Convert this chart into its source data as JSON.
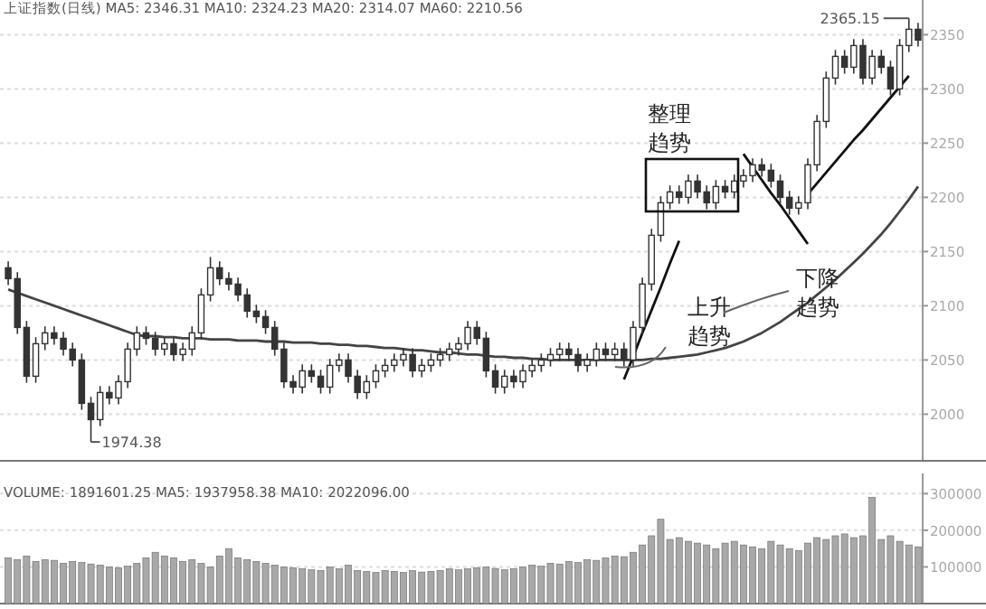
{
  "chart_data": [
    {
      "type": "candlestick",
      "title": "上证指数(日线) MA5: 2346.31 MA10: 2324.23 MA20: 2314.07 MA60: 2210.56",
      "categories": [
        null,
        null,
        null,
        null,
        null,
        null,
        null,
        null,
        null,
        null,
        null,
        null,
        null,
        null,
        null,
        null,
        null,
        null,
        null,
        null,
        null,
        null,
        null,
        null,
        null,
        null,
        null,
        null,
        null,
        null,
        null,
        null,
        null,
        null,
        null,
        null,
        null,
        null,
        null,
        null,
        null,
        null,
        null,
        null,
        null,
        null,
        null,
        null,
        null,
        null,
        null,
        null,
        null,
        null,
        null,
        null,
        null,
        null,
        null,
        null,
        null,
        null,
        null,
        null,
        null,
        null,
        null,
        null,
        null,
        null,
        null,
        null,
        null,
        null,
        null,
        null,
        null,
        null,
        null,
        null,
        null,
        null,
        null,
        null,
        null,
        null,
        null,
        null,
        null,
        null,
        null,
        null,
        null,
        null,
        null,
        null,
        null,
        null,
        null,
        null
      ],
      "ohlc": [
        [
          2135,
          2141,
          2119,
          2125
        ],
        [
          2125,
          2131,
          2074,
          2080
        ],
        [
          2080,
          2086,
          2029,
          2035
        ],
        [
          2035,
          2071,
          2029,
          2065
        ],
        [
          2065,
          2081,
          2059,
          2075
        ],
        [
          2075,
          2081,
          2064,
          2070
        ],
        [
          2070,
          2076,
          2054,
          2060
        ],
        [
          2060,
          2066,
          2044,
          2050
        ],
        [
          2050,
          2056,
          2004,
          2010
        ],
        [
          2010,
          2016,
          1974.38,
          1995
        ],
        [
          1995,
          2026,
          1989,
          2020
        ],
        [
          2020,
          2026,
          2009,
          2015
        ],
        [
          2015,
          2036,
          2009,
          2030
        ],
        [
          2030,
          2066,
          2024,
          2060
        ],
        [
          2060,
          2081,
          2054,
          2075
        ],
        [
          2075,
          2081,
          2064,
          2070
        ],
        [
          2070,
          2076,
          2054,
          2060
        ],
        [
          2060,
          2071,
          2054,
          2065
        ],
        [
          2065,
          2071,
          2049,
          2055
        ],
        [
          2055,
          2066,
          2049,
          2060
        ],
        [
          2060,
          2081,
          2054,
          2075
        ],
        [
          2075,
          2116,
          2069,
          2110
        ],
        [
          2110,
          2145,
          2104,
          2135
        ],
        [
          2135,
          2141,
          2119,
          2125
        ],
        [
          2125,
          2131,
          2114,
          2120
        ],
        [
          2120,
          2126,
          2104,
          2110
        ],
        [
          2110,
          2116,
          2089,
          2095
        ],
        [
          2095,
          2101,
          2084,
          2090
        ],
        [
          2090,
          2096,
          2074,
          2080
        ],
        [
          2080,
          2086,
          2054,
          2060
        ],
        [
          2060,
          2066,
          2024,
          2030
        ],
        [
          2030,
          2036,
          2019,
          2025
        ],
        [
          2025,
          2046,
          2019,
          2040
        ],
        [
          2040,
          2046,
          2029,
          2035
        ],
        [
          2035,
          2041,
          2019,
          2025
        ],
        [
          2025,
          2051,
          2019,
          2045
        ],
        [
          2045,
          2056,
          2039,
          2050
        ],
        [
          2050,
          2056,
          2029,
          2035
        ],
        [
          2035,
          2041,
          2014,
          2020
        ],
        [
          2020,
          2036,
          2014,
          2030
        ],
        [
          2030,
          2046,
          2024,
          2040
        ],
        [
          2040,
          2051,
          2034,
          2045
        ],
        [
          2045,
          2056,
          2039,
          2050
        ],
        [
          2050,
          2061,
          2044,
          2055
        ],
        [
          2055,
          2061,
          2034,
          2040
        ],
        [
          2040,
          2051,
          2034,
          2045
        ],
        [
          2045,
          2056,
          2039,
          2050
        ],
        [
          2050,
          2061,
          2044,
          2055
        ],
        [
          2055,
          2066,
          2049,
          2060
        ],
        [
          2060,
          2071,
          2054,
          2065
        ],
        [
          2065,
          2086,
          2059,
          2080
        ],
        [
          2080,
          2086,
          2064,
          2070
        ],
        [
          2070,
          2076,
          2034,
          2040
        ],
        [
          2040,
          2046,
          2019,
          2025
        ],
        [
          2025,
          2041,
          2019,
          2035
        ],
        [
          2035,
          2041,
          2024,
          2030
        ],
        [
          2030,
          2046,
          2024,
          2040
        ],
        [
          2040,
          2051,
          2034,
          2045
        ],
        [
          2045,
          2056,
          2039,
          2050
        ],
        [
          2050,
          2061,
          2044,
          2055
        ],
        [
          2055,
          2066,
          2049,
          2060
        ],
        [
          2060,
          2066,
          2049,
          2055
        ],
        [
          2055,
          2061,
          2039,
          2045
        ],
        [
          2045,
          2056,
          2039,
          2050
        ],
        [
          2050,
          2066,
          2044,
          2060
        ],
        [
          2060,
          2066,
          2049,
          2055
        ],
        [
          2055,
          2066,
          2049,
          2060
        ],
        [
          2060,
          2066,
          2044,
          2050
        ],
        [
          2050,
          2086,
          2044,
          2080
        ],
        [
          2080,
          2126,
          2074,
          2120
        ],
        [
          2120,
          2171,
          2114,
          2165
        ],
        [
          2165,
          2201,
          2159,
          2195
        ],
        [
          2195,
          2211,
          2189,
          2205
        ],
        [
          2205,
          2211,
          2194,
          2200
        ],
        [
          2200,
          2221,
          2194,
          2215
        ],
        [
          2215,
          2221,
          2199,
          2205
        ],
        [
          2205,
          2211,
          2189,
          2195
        ],
        [
          2195,
          2216,
          2189,
          2210
        ],
        [
          2210,
          2216,
          2199,
          2205
        ],
        [
          2205,
          2221,
          2199,
          2215
        ],
        [
          2215,
          2226,
          2209,
          2220
        ],
        [
          2220,
          2236,
          2214,
          2230
        ],
        [
          2230,
          2236,
          2219,
          2225
        ],
        [
          2225,
          2231,
          2209,
          2215
        ],
        [
          2215,
          2221,
          2194,
          2200
        ],
        [
          2200,
          2206,
          2184,
          2190
        ],
        [
          2190,
          2201,
          2184,
          2195
        ],
        [
          2195,
          2236,
          2189,
          2230
        ],
        [
          2230,
          2276,
          2224,
          2270
        ],
        [
          2270,
          2316,
          2264,
          2310
        ],
        [
          2310,
          2336,
          2304,
          2330
        ],
        [
          2330,
          2336,
          2314,
          2320
        ],
        [
          2320,
          2346,
          2314,
          2340
        ],
        [
          2340,
          2346,
          2304,
          2310
        ],
        [
          2310,
          2336,
          2304,
          2330
        ],
        [
          2330,
          2336,
          2314,
          2320
        ],
        [
          2320,
          2326,
          2294,
          2300
        ],
        [
          2300,
          2346,
          2294,
          2340
        ],
        [
          2340,
          2365.15,
          2334,
          2355
        ],
        [
          2355,
          2361,
          2339,
          2345
        ]
      ],
      "series": [
        {
          "type": "line",
          "color": "#444444",
          "values": [
            2115,
            2112,
            2109,
            2106,
            2103,
            2100,
            2097,
            2094,
            2091,
            2088,
            2085,
            2082,
            2079,
            2076,
            2073,
            2072,
            2072,
            2071,
            2071,
            2070,
            2070,
            2070,
            2069,
            2069,
            2069,
            2068,
            2068,
            2068,
            2067,
            2067,
            2067,
            2066,
            2066,
            2066,
            2065,
            2065,
            2064,
            2064,
            2063,
            2063,
            2062,
            2061,
            2061,
            2060,
            2059,
            2059,
            2058,
            2057,
            2057,
            2056,
            2055,
            2055,
            2054,
            2053,
            2053,
            2052,
            2052,
            2051,
            2051,
            2050,
            2050,
            2050,
            2050,
            2050,
            2050,
            2050,
            2050,
            2050,
            2050,
            2050,
            2051,
            2051,
            2052,
            2053,
            2054,
            2055,
            2057,
            2059,
            2061,
            2064,
            2067,
            2071,
            2075,
            2080,
            2085,
            2091,
            2097,
            2103,
            2110,
            2117,
            2124,
            2132,
            2140,
            2148,
            2157,
            2166,
            2176,
            2187,
            2198,
            2210
          ]
        },
        {
          "type": "line",
          "color": "#111111",
          "values": [
            null,
            null,
            null,
            null,
            null,
            null,
            null,
            null,
            null,
            null,
            null,
            null,
            null,
            null,
            null,
            null,
            null,
            null,
            null,
            null,
            null,
            null,
            null,
            null,
            null,
            null,
            null,
            null,
            null,
            null,
            null,
            null,
            null,
            null,
            null,
            null,
            null,
            null,
            null,
            null,
            null,
            null,
            null,
            null,
            null,
            null,
            null,
            null,
            null,
            null,
            null,
            null,
            null,
            null,
            null,
            null,
            null,
            null,
            null,
            null,
            null,
            null,
            null,
            null,
            null,
            null,
            null,
            2032,
            2053,
            2075,
            2096,
            2117,
            2139,
            2160,
            null,
            null,
            null,
            null,
            null,
            null,
            null,
            null,
            null,
            null,
            null,
            null,
            null,
            null,
            null,
            null,
            null,
            null,
            null,
            null,
            null,
            null,
            null,
            null,
            null,
            null
          ]
        },
        {
          "type": "line",
          "color": "#111111",
          "values": [
            null,
            null,
            null,
            null,
            null,
            null,
            null,
            null,
            null,
            null,
            null,
            null,
            null,
            null,
            null,
            null,
            null,
            null,
            null,
            null,
            null,
            null,
            null,
            null,
            null,
            null,
            null,
            null,
            null,
            null,
            null,
            null,
            null,
            null,
            null,
            null,
            null,
            null,
            null,
            null,
            null,
            null,
            null,
            null,
            null,
            null,
            null,
            null,
            null,
            null,
            null,
            null,
            null,
            null,
            null,
            null,
            null,
            null,
            null,
            null,
            null,
            null,
            null,
            null,
            null,
            null,
            null,
            null,
            null,
            null,
            null,
            null,
            null,
            null,
            null,
            null,
            null,
            null,
            null,
            null,
            2240,
            2228,
            2216,
            2204,
            2193,
            2181,
            2169,
            2157,
            null,
            null,
            null,
            null,
            null,
            null,
            null,
            null,
            null,
            null,
            null,
            null
          ]
        },
        {
          "type": "line",
          "color": "#111111",
          "values": [
            null,
            null,
            null,
            null,
            null,
            null,
            null,
            null,
            null,
            null,
            null,
            null,
            null,
            null,
            null,
            null,
            null,
            null,
            null,
            null,
            null,
            null,
            null,
            null,
            null,
            null,
            null,
            null,
            null,
            null,
            null,
            null,
            null,
            null,
            null,
            null,
            null,
            null,
            null,
            null,
            null,
            null,
            null,
            null,
            null,
            null,
            null,
            null,
            null,
            null,
            null,
            null,
            null,
            null,
            null,
            null,
            null,
            null,
            null,
            null,
            null,
            null,
            null,
            null,
            null,
            null,
            null,
            null,
            null,
            null,
            null,
            null,
            null,
            null,
            null,
            null,
            null,
            null,
            null,
            null,
            null,
            null,
            null,
            null,
            null,
            null,
            null,
            2203,
            2213,
            2223,
            2233,
            2243,
            2253,
            2262,
            2272,
            2282,
            2292,
            2302,
            2312,
            null
          ]
        }
      ],
      "ylim": [
        1957,
        2382
      ],
      "yticks": [
        2000,
        2050,
        2100,
        2150,
        2200,
        2250,
        2300,
        2350
      ],
      "grid": "y",
      "annotations": [
        "整理趋势",
        "上升趋势",
        "下降趋势",
        "1974.38",
        "2365.15"
      ]
    },
    {
      "type": "bar",
      "title": "VOLUME: 1891601.25 MA5: 1937958.38 MA10: 2022096.00",
      "categories": [
        null,
        null,
        null,
        null,
        null,
        null,
        null,
        null,
        null,
        null,
        null,
        null,
        null,
        null,
        null,
        null,
        null,
        null,
        null,
        null,
        null,
        null,
        null,
        null,
        null,
        null,
        null,
        null,
        null,
        null,
        null,
        null,
        null,
        null,
        null,
        null,
        null,
        null,
        null,
        null,
        null,
        null,
        null,
        null,
        null,
        null,
        null,
        null,
        null,
        null,
        null,
        null,
        null,
        null,
        null,
        null,
        null,
        null,
        null,
        null,
        null,
        null,
        null,
        null,
        null,
        null,
        null,
        null,
        null,
        null,
        null,
        null,
        null,
        null,
        null,
        null,
        null,
        null,
        null,
        null,
        null,
        null,
        null,
        null,
        null,
        null,
        null,
        null,
        null,
        null,
        null,
        null,
        null,
        null,
        null,
        null,
        null,
        null,
        null,
        null
      ],
      "values": [
        125000,
        120000,
        130000,
        115000,
        120000,
        118000,
        110000,
        115000,
        112000,
        108000,
        105000,
        100000,
        98000,
        102000,
        110000,
        125000,
        140000,
        130000,
        125000,
        115000,
        120000,
        110000,
        100000,
        130000,
        150000,
        125000,
        120000,
        115000,
        110000,
        105000,
        100000,
        98000,
        95000,
        92000,
        90000,
        100000,
        95000,
        105000,
        90000,
        88000,
        85000,
        90000,
        88000,
        85000,
        90000,
        86000,
        88000,
        90000,
        95000,
        92000,
        95000,
        98000,
        100000,
        96000,
        92000,
        95000,
        100000,
        105000,
        102000,
        110000,
        108000,
        115000,
        112000,
        120000,
        118000,
        125000,
        130000,
        128000,
        140000,
        160000,
        185000,
        230000,
        175000,
        180000,
        170000,
        165000,
        160000,
        150000,
        165000,
        170000,
        160000,
        155000,
        150000,
        170000,
        160000,
        150000,
        145000,
        165000,
        180000,
        175000,
        185000,
        190000,
        180000,
        185000,
        290000,
        175000,
        185000,
        170000,
        160000,
        155000
      ],
      "color": "#a8a8a8",
      "ylim": [
        0,
        355000
      ],
      "yticks": [
        100000,
        200000,
        300000
      ],
      "grid": "y"
    }
  ]
}
